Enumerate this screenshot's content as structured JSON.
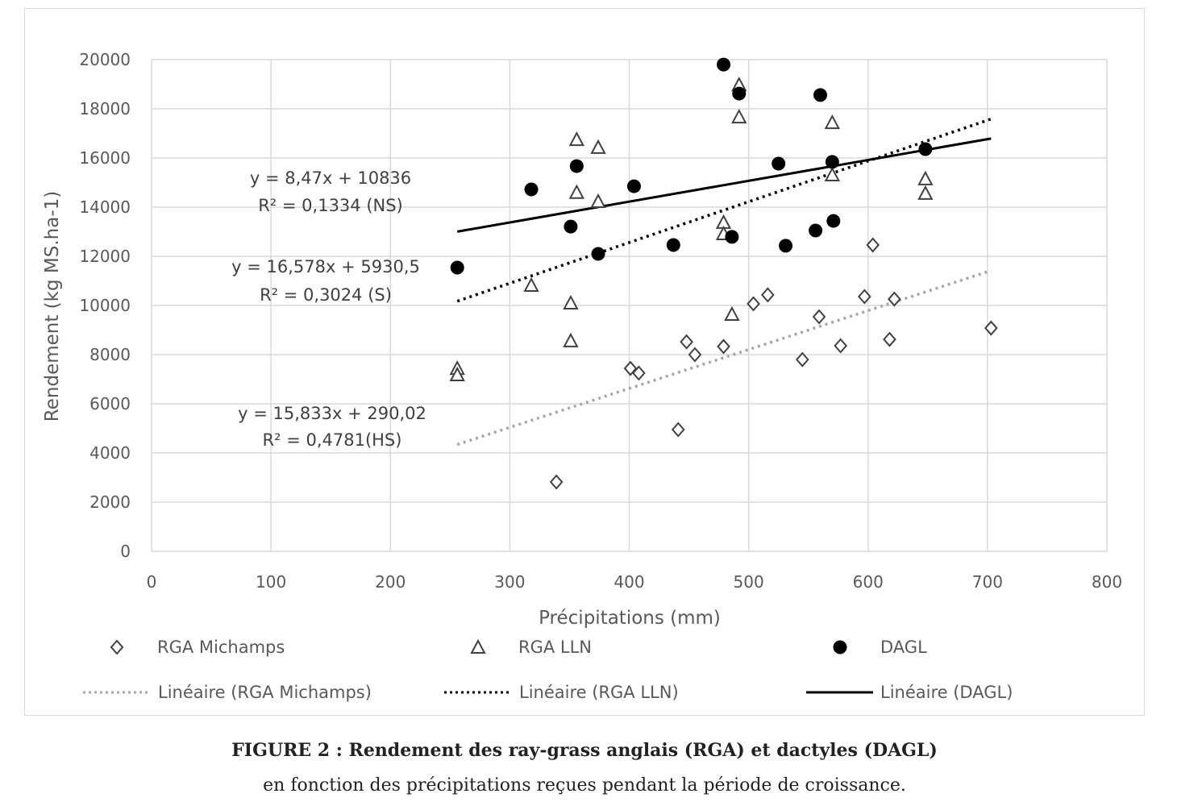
{
  "chart_data": {
    "type": "scatter",
    "xlabel": "Précipitations  (mm)",
    "ylabel": "Rendement (kg MS.ha-1)",
    "xlim": [
      0,
      800
    ],
    "ylim": [
      0,
      20000
    ],
    "xticks": [
      "0",
      "100",
      "200",
      "300",
      "400",
      "500",
      "600",
      "700",
      "800"
    ],
    "yticks": [
      "0",
      "2000",
      "4000",
      "6000",
      "8000",
      "10000",
      "12000",
      "14000",
      "16000",
      "18000",
      "20000"
    ],
    "grid": true,
    "legend_position": "bottom",
    "series": [
      {
        "name": "RGA Michamps",
        "marker": "diamond",
        "color": "#404040",
        "points": [
          [
            339,
            2820
          ],
          [
            401,
            7440
          ],
          [
            408,
            7250
          ],
          [
            441,
            4950
          ],
          [
            448,
            8520
          ],
          [
            455,
            8000
          ],
          [
            479,
            8330
          ],
          [
            504,
            10070
          ],
          [
            516,
            10430
          ],
          [
            545,
            7800
          ],
          [
            559,
            9540
          ],
          [
            577,
            8360
          ],
          [
            597,
            10360
          ],
          [
            604,
            12460
          ],
          [
            618,
            8620
          ],
          [
            622,
            10260
          ],
          [
            703,
            9080
          ]
        ]
      },
      {
        "name": "RGA LLN",
        "marker": "triangle",
        "color": "#404040",
        "points": [
          [
            256,
            7440
          ],
          [
            256,
            7180
          ],
          [
            318,
            10820
          ],
          [
            351,
            10100
          ],
          [
            351,
            8560
          ],
          [
            356,
            16750
          ],
          [
            356,
            14600
          ],
          [
            374,
            16430
          ],
          [
            374,
            14230
          ],
          [
            479,
            13380
          ],
          [
            479,
            12920
          ],
          [
            486,
            9640
          ],
          [
            492,
            18980
          ],
          [
            492,
            17670
          ],
          [
            570,
            17440
          ],
          [
            570,
            15310
          ],
          [
            648,
            15150
          ],
          [
            648,
            14560
          ]
        ]
      },
      {
        "name": "DAGL",
        "marker": "circle",
        "color": "#000000",
        "points": [
          [
            256,
            11540
          ],
          [
            318,
            14720
          ],
          [
            351,
            13210
          ],
          [
            356,
            15670
          ],
          [
            374,
            12100
          ],
          [
            404,
            14850
          ],
          [
            437,
            12460
          ],
          [
            479,
            19800
          ],
          [
            486,
            12790
          ],
          [
            492,
            18620
          ],
          [
            525,
            15770
          ],
          [
            531,
            12430
          ],
          [
            556,
            13050
          ],
          [
            560,
            18560
          ],
          [
            570,
            15840
          ],
          [
            571,
            13440
          ],
          [
            648,
            16360
          ]
        ]
      }
    ],
    "trendlines": [
      {
        "name": "Linéaire (RGA Michamps)",
        "slope": 15.833,
        "intercept": 290.02,
        "x_range": [
          256,
          703
        ],
        "style": "dotted",
        "color": "#a6a6a6",
        "equation": "y = 15,833x + 290,02",
        "r2": "R² = 0,4781(HS)"
      },
      {
        "name": "Linéaire (RGA LLN)",
        "slope": 16.578,
        "intercept": 5930.5,
        "x_range": [
          256,
          703
        ],
        "style": "dotted",
        "color": "#000000",
        "equation": "y = 16,578x + 5930,5",
        "r2": "R² = 0,3024 (S)"
      },
      {
        "name": "Linéaire (DAGL)",
        "slope": 8.47,
        "intercept": 10836,
        "x_range": [
          256,
          703
        ],
        "style": "solid",
        "color": "#000000",
        "equation": "y = 8,47x + 10836",
        "r2": "R² = 0,1334 (NS)"
      }
    ]
  },
  "caption": {
    "line1": "FIGURE 2 : Rendement des ray-grass anglais (RGA) et dactyles (DAGL)",
    "line2": "en fonction des précipitations reçues pendant la période de croissance."
  }
}
